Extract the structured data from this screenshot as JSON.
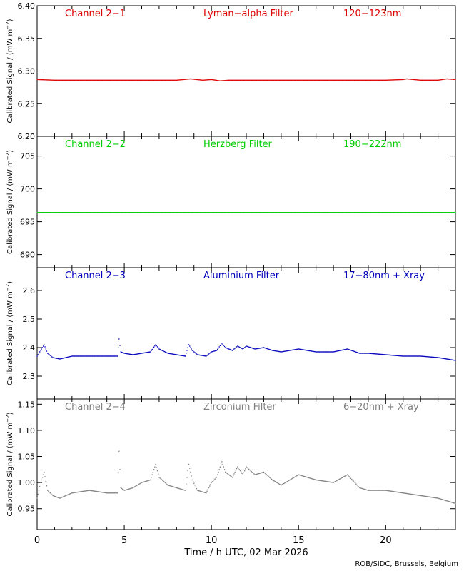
{
  "figure": {
    "xlabel": "Time / h UTC, 02 Mar 2026",
    "credit": "ROB/SIDC, Brussels, Belgium",
    "ylabel_text": "Calibrated Signal / (mW m",
    "ylabel_sup": "−2",
    "ylabel_close": ")"
  },
  "chart_data": [
    {
      "type": "scatter",
      "channel": "Channel 2−1",
      "filter": "Lyman−alpha Filter",
      "band": "120−123nm",
      "color": "#dd0000",
      "ylim": [
        6.2,
        6.4
      ],
      "yticks": [
        6.2,
        6.25,
        6.3,
        6.35,
        6.4
      ],
      "yticklabels": [
        "6.20",
        "6.25",
        "6.30",
        "6.35",
        "6.40"
      ],
      "xlim": [
        0,
        24
      ],
      "x": [
        0,
        1,
        2,
        3,
        4,
        5,
        6,
        7,
        8,
        8.8,
        9.5,
        10,
        10.5,
        11,
        12,
        13,
        14,
        15,
        16,
        17,
        18,
        19,
        20,
        21,
        21.2,
        22,
        23,
        23.5,
        24
      ],
      "y": [
        6.287,
        6.286,
        6.286,
        6.286,
        6.286,
        6.286,
        6.286,
        6.286,
        6.286,
        6.288,
        6.286,
        6.287,
        6.285,
        6.286,
        6.286,
        6.286,
        6.286,
        6.286,
        6.286,
        6.286,
        6.286,
        6.286,
        6.286,
        6.287,
        6.288,
        6.286,
        6.286,
        6.288,
        6.287
      ]
    },
    {
      "type": "scatter",
      "channel": "Channel 2−2",
      "filter": "Herzberg Filter",
      "band": "190−222nm",
      "color": "#00cc00",
      "ylim": [
        688,
        708
      ],
      "yticks": [
        690,
        695,
        700,
        705
      ],
      "yticklabels": [
        "690",
        "695",
        "700",
        "705"
      ],
      "xlim": [
        0,
        24
      ],
      "x": [
        0,
        4,
        8,
        12,
        16,
        20,
        24
      ],
      "y": [
        696.4,
        696.4,
        696.4,
        696.4,
        696.4,
        696.4,
        696.4
      ]
    },
    {
      "type": "scatter",
      "channel": "Channel 2−3",
      "filter": "Aluminium Filter",
      "band": "17−80nm + Xray",
      "color": "#0000bb",
      "ylim": [
        2.22,
        2.68
      ],
      "yticks": [
        2.3,
        2.4,
        2.5,
        2.6
      ],
      "yticklabels": [
        "2.3",
        "2.4",
        "2.5",
        "2.6"
      ],
      "xlim": [
        0,
        24
      ],
      "x": [
        0,
        0.2,
        0.4,
        0.6,
        0.9,
        1.3,
        2,
        3,
        4,
        4.6,
        4.7,
        4.8,
        5,
        5.5,
        6,
        6.5,
        6.8,
        7,
        7.5,
        8,
        8.5,
        8.7,
        8.9,
        9.2,
        9.7,
        10,
        10.3,
        10.6,
        10.8,
        11.2,
        11.5,
        11.8,
        12,
        12.5,
        13,
        13.5,
        14,
        15,
        16,
        17,
        17.8,
        18.5,
        19,
        20,
        21,
        22,
        23,
        24
      ],
      "y": [
        2.37,
        2.39,
        2.41,
        2.38,
        2.365,
        2.36,
        2.37,
        2.37,
        2.37,
        2.37,
        2.43,
        2.385,
        2.38,
        2.375,
        2.38,
        2.385,
        2.41,
        2.395,
        2.38,
        2.375,
        2.37,
        2.41,
        2.39,
        2.375,
        2.37,
        2.385,
        2.39,
        2.415,
        2.4,
        2.39,
        2.405,
        2.395,
        2.405,
        2.395,
        2.4,
        2.39,
        2.385,
        2.395,
        2.385,
        2.385,
        2.395,
        2.38,
        2.38,
        2.375,
        2.37,
        2.37,
        2.365,
        2.355
      ]
    },
    {
      "type": "scatter",
      "channel": "Channel 2−4",
      "filter": "Zirconium Filter",
      "band": "6−20nm + Xray",
      "color": "#808080",
      "ylim": [
        0.91,
        1.16
      ],
      "yticks": [
        0.95,
        1.0,
        1.05,
        1.1,
        1.15
      ],
      "yticklabels": [
        "0.95",
        "1.00",
        "1.05",
        "1.10",
        "1.15"
      ],
      "xlim": [
        0,
        24
      ],
      "x": [
        0,
        0.2,
        0.4,
        0.6,
        0.9,
        1.3,
        2,
        3,
        4,
        4.6,
        4.7,
        4.8,
        5,
        5.5,
        6,
        6.5,
        6.8,
        7,
        7.5,
        8,
        8.5,
        8.7,
        8.9,
        9.2,
        9.7,
        10,
        10.3,
        10.6,
        10.8,
        11.2,
        11.5,
        11.8,
        12,
        12.5,
        13,
        13.5,
        14,
        15,
        16,
        17,
        17.8,
        18.5,
        19,
        20,
        21,
        22,
        23,
        24
      ],
      "y": [
        0.97,
        1.0,
        1.02,
        0.985,
        0.975,
        0.97,
        0.98,
        0.985,
        0.98,
        0.98,
        1.06,
        0.99,
        0.985,
        0.99,
        1.0,
        1.005,
        1.035,
        1.01,
        0.995,
        0.99,
        0.985,
        1.035,
        1.005,
        0.985,
        0.98,
        1.0,
        1.01,
        1.04,
        1.02,
        1.01,
        1.03,
        1.015,
        1.03,
        1.015,
        1.02,
        1.005,
        0.995,
        1.015,
        1.005,
        1.0,
        1.015,
        0.99,
        0.985,
        0.985,
        0.98,
        0.975,
        0.97,
        0.96
      ]
    }
  ],
  "xaxis": {
    "ticks": [
      0,
      5,
      10,
      15,
      20
    ],
    "ticklabels": [
      "0",
      "5",
      "10",
      "15",
      "20"
    ],
    "minor_step": 1
  }
}
